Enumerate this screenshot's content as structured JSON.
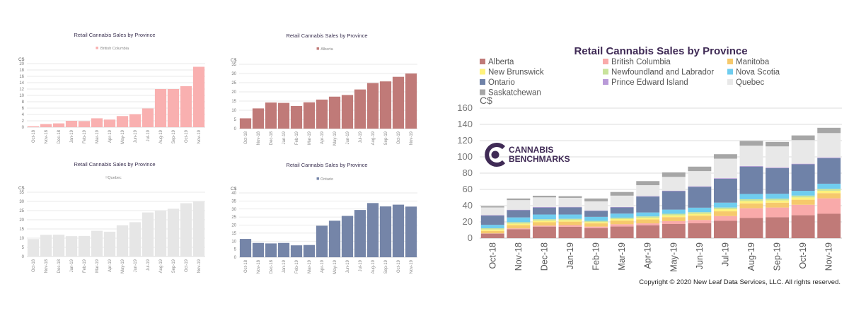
{
  "chart_data": [
    {
      "type": "bar",
      "title": "Retail Cannabis  Sales by Province",
      "legend": [
        "British Columbia"
      ],
      "ylabel": "C$",
      "ylim": [
        0,
        20
      ],
      "yticks": [
        0,
        2,
        4,
        6,
        8,
        10,
        12,
        14,
        16,
        18,
        20
      ],
      "categories": [
        "Oct-18",
        "Nov-18",
        "Dec-18",
        "Jan-19",
        "Feb-19",
        "Mar-19",
        "Apr-19",
        "May-19",
        "Jun-19",
        "Jul-19",
        "Aug-19",
        "Sep-19",
        "Oct-19",
        "Nov-19"
      ],
      "series": [
        {
          "name": "British Columbia",
          "color": "#f9b0b0",
          "values": [
            0.3,
            1.0,
            1.2,
            2.0,
            1.9,
            2.8,
            2.4,
            3.5,
            4.1,
            5.9,
            12.0,
            12.0,
            12.9,
            19.0
          ]
        }
      ]
    },
    {
      "type": "bar",
      "title": "Retail Cannabis  Sales by Province",
      "legend": [
        "Alberta"
      ],
      "ylabel": "C$",
      "ylim": [
        0,
        35
      ],
      "yticks": [
        0,
        5,
        10,
        15,
        20,
        25,
        30,
        35
      ],
      "categories": [
        "Oct-18",
        "Nov-18",
        "Dec-18",
        "Jan-19",
        "Feb-19",
        "Mar-19",
        "Apr-19",
        "May-19",
        "Jun-19",
        "Jul-19",
        "Aug-19",
        "Sep-19",
        "Oct-19",
        "Nov-19"
      ],
      "series": [
        {
          "name": "Alberta",
          "color": "#c07a78",
          "values": [
            5.6,
            11.0,
            14.2,
            14.0,
            12.3,
            14.3,
            15.8,
            17.4,
            18.3,
            21.3,
            24.8,
            25.7,
            28.2,
            30.0
          ]
        }
      ]
    },
    {
      "type": "bar",
      "title": "Retail Cannabis  Sales by Province",
      "legend": [
        "Quebec"
      ],
      "ylabel": "C$",
      "ylim": [
        0,
        35
      ],
      "yticks": [
        0,
        5,
        10,
        15,
        20,
        25,
        30,
        35
      ],
      "categories": [
        "Oct-18",
        "Nov-18",
        "Dec-18",
        "Jan-19",
        "Feb-19",
        "Mar-19",
        "Apr-19",
        "May-19",
        "Jun-19",
        "Jul-19",
        "Aug-19",
        "Sep-19",
        "Oct-19",
        "Nov-19"
      ],
      "series": [
        {
          "name": "Quebec",
          "color": "#e6e6e6",
          "values": [
            9.5,
            11.8,
            11.9,
            11.1,
            11.2,
            14.0,
            13.5,
            17.0,
            18.7,
            24.0,
            25.0,
            26.0,
            29.0,
            30.0
          ]
        }
      ]
    },
    {
      "type": "bar",
      "title": "Retail Cannabis  Sales by Province",
      "legend": [
        "Ontario"
      ],
      "ylabel": "C$",
      "ylim": [
        0,
        40
      ],
      "yticks": [
        0,
        5,
        10,
        15,
        20,
        25,
        30,
        35,
        40
      ],
      "categories": [
        "Oct-18",
        "Nov-18",
        "Dec-18",
        "Jan-19",
        "Feb-19",
        "Mar-19",
        "Apr-19",
        "May-19",
        "Jun-19",
        "Jul-19",
        "Aug-19",
        "Sep-19",
        "Oct-19",
        "Nov-19"
      ],
      "series": [
        {
          "name": "Ontario",
          "color": "#7585a8",
          "values": [
            11.4,
            8.9,
            8.6,
            8.9,
            7.4,
            7.6,
            19.6,
            22.7,
            25.7,
            29.4,
            33.7,
            31.6,
            32.7,
            31.5
          ]
        }
      ]
    },
    {
      "type": "bar",
      "stacked": true,
      "title": "Retail Cannabis Sales by Province",
      "ylabel": "C$",
      "ylim": [
        0,
        160
      ],
      "yticks": [
        0,
        20,
        40,
        60,
        80,
        100,
        120,
        140,
        160
      ],
      "legend_position": "top",
      "categories": [
        "Oct-18",
        "Nov-18",
        "Dec-18",
        "Jan-19",
        "Feb-19",
        "Mar-19",
        "Apr-19",
        "May-19",
        "Jun-19",
        "Jul-19",
        "Aug-19",
        "Sep-19",
        "Oct-19",
        "Nov-19"
      ],
      "series": [
        {
          "name": "Alberta",
          "color": "#c07a78",
          "values": [
            5.6,
            11.0,
            14.2,
            14.0,
            12.3,
            14.3,
            15.8,
            17.4,
            18.3,
            21.3,
            24.8,
            25.7,
            28.2,
            30.0
          ]
        },
        {
          "name": "British Columbia",
          "color": "#f9aaaa",
          "values": [
            0.3,
            1.0,
            1.2,
            2.0,
            1.9,
            2.8,
            2.4,
            3.5,
            4.1,
            5.9,
            12.0,
            12.0,
            12.9,
            19.0
          ]
        },
        {
          "name": "Manitoba",
          "color": "#f6c96c",
          "values": [
            3.0,
            4.0,
            4.2,
            4.3,
            4.0,
            4.5,
            4.8,
            5.0,
            5.3,
            5.8,
            6.0,
            6.0,
            6.2,
            6.4
          ]
        },
        {
          "name": "New Brunswick",
          "color": "#fff27c",
          "values": [
            1.8,
            1.9,
            1.9,
            1.8,
            1.6,
            1.9,
            2.0,
            2.2,
            2.3,
            2.6,
            2.8,
            2.7,
            2.8,
            2.9
          ]
        },
        {
          "name": "Newfoundland and Labrador",
          "color": "#c9e39c",
          "values": [
            1.5,
            1.8,
            1.8,
            1.7,
            1.5,
            1.7,
            1.8,
            1.9,
            2.0,
            2.1,
            2.3,
            2.2,
            2.3,
            2.4
          ]
        },
        {
          "name": "Nova Scotia",
          "color": "#6fcdef",
          "values": [
            4.2,
            5.8,
            5.8,
            5.3,
            4.9,
            5.0,
            4.8,
            5.1,
            5.5,
            6.0,
            6.5,
            6.0,
            5.8,
            6.3
          ]
        },
        {
          "name": "Ontario",
          "color": "#6f82a8",
          "values": [
            11.4,
            8.9,
            8.6,
            8.9,
            7.4,
            7.6,
            19.6,
            22.7,
            25.7,
            29.4,
            33.7,
            31.6,
            32.7,
            31.5
          ]
        },
        {
          "name": "Prince Edward Island",
          "color": "#b99ad8",
          "values": [
            0.5,
            0.6,
            0.6,
            0.5,
            0.5,
            0.5,
            0.5,
            0.6,
            0.6,
            0.7,
            0.7,
            0.7,
            0.7,
            0.8
          ]
        },
        {
          "name": "Quebec",
          "color": "#e8e8e8",
          "values": [
            9.5,
            11.8,
            11.9,
            11.1,
            11.2,
            14.0,
            13.5,
            17.0,
            18.7,
            24.0,
            25.0,
            26.0,
            29.0,
            30.0
          ]
        },
        {
          "name": "Saskatchewan",
          "color": "#a6a6a6",
          "values": [
            1.5,
            2.0,
            2.0,
            2.0,
            3.5,
            4.5,
            5.0,
            5.5,
            5.5,
            5.5,
            5.8,
            5.5,
            5.8,
            6.5
          ]
        }
      ]
    }
  ],
  "logo_text": [
    "CANNABIS",
    "BENCHMARKS"
  ],
  "copyright": "Copyright © 2020 New Leaf Data Services, LLC. All rights reserved."
}
